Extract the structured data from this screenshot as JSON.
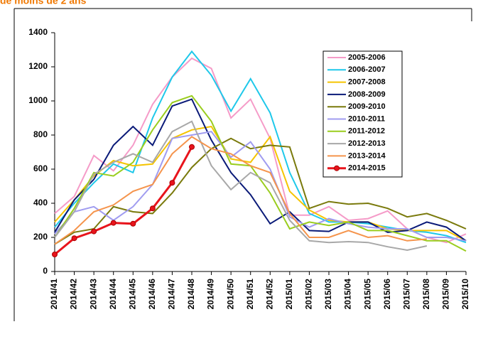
{
  "chart_data": {
    "type": "line",
    "title": "de moins de 2 ans",
    "categories": [
      "2014/41",
      "2014/42",
      "2014/43",
      "2014/44",
      "2014/45",
      "2014/46",
      "2014/47",
      "2014/48",
      "2014/49",
      "2014/50",
      "2014/51",
      "2014/52",
      "2015/01",
      "2015/02",
      "2015/03",
      "2015/04",
      "2015/05",
      "2015/06",
      "2015/07",
      "2015/08",
      "2015/09",
      "2015/10"
    ],
    "ylim": [
      0,
      1400
    ],
    "yticks": [
      0,
      200,
      400,
      600,
      800,
      1000,
      1200,
      1400
    ],
    "grid": false,
    "legend": "upper-right",
    "series": [
      {
        "name": "2005-2006",
        "color": "#f59bc8",
        "values": [
          340,
          440,
          680,
          590,
          740,
          980,
          1140,
          1250,
          1190,
          900,
          1010,
          780,
          330,
          330,
          380,
          300,
          310,
          355,
          250,
          200,
          170,
          220
        ]
      },
      {
        "name": "2006-2007",
        "color": "#1ec8ea",
        "values": [
          260,
          400,
          520,
          630,
          580,
          900,
          1140,
          1290,
          1150,
          940,
          1130,
          930,
          580,
          340,
          290,
          290,
          280,
          260,
          240,
          230,
          210,
          170
        ]
      },
      {
        "name": "2007-2008",
        "color": "#f5c400",
        "values": [
          290,
          420,
          560,
          650,
          620,
          630,
          780,
          830,
          850,
          660,
          640,
          790,
          470,
          360,
          300,
          290,
          290,
          250,
          240,
          240,
          240,
          180
        ]
      },
      {
        "name": "2008-2009",
        "color": "#0a1a78",
        "values": [
          230,
          420,
          540,
          740,
          850,
          740,
          970,
          1010,
          770,
          580,
          450,
          280,
          350,
          240,
          235,
          290,
          290,
          230,
          240,
          290,
          260,
          180
        ]
      },
      {
        "name": "2009-2010",
        "color": "#7a7a0c",
        "values": [
          160,
          230,
          250,
          380,
          350,
          340,
          460,
          610,
          720,
          780,
          720,
          740,
          730,
          370,
          410,
          395,
          400,
          370,
          320,
          340,
          300,
          250
        ]
      },
      {
        "name": "2010-2011",
        "color": "#a09cf0",
        "values": [
          220,
          350,
          380,
          300,
          380,
          510,
          780,
          800,
          820,
          670,
          760,
          600,
          320,
          260,
          310,
          280,
          260,
          250,
          250,
          200,
          200,
          180
        ]
      },
      {
        "name": "2011-2012",
        "color": "#9acd1e",
        "values": [
          200,
          370,
          580,
          560,
          640,
          830,
          990,
          1030,
          880,
          630,
          620,
          460,
          250,
          290,
          270,
          290,
          240,
          240,
          210,
          180,
          180,
          120
        ]
      },
      {
        "name": "2012-2013",
        "color": "#a8a8a8",
        "values": [
          200,
          350,
          570,
          640,
          690,
          640,
          820,
          880,
          620,
          480,
          580,
          520,
          300,
          180,
          170,
          175,
          170,
          145,
          125,
          150,
          null,
          null
        ]
      },
      {
        "name": "2013-2014",
        "color": "#f5944c",
        "values": [
          160,
          240,
          350,
          390,
          470,
          510,
          690,
          790,
          720,
          690,
          620,
          580,
          340,
          200,
          200,
          240,
          200,
          210,
          180,
          190,
          null,
          null
        ]
      },
      {
        "name": "2014-2015",
        "color": "#e8141c",
        "values": [
          100,
          195,
          235,
          285,
          280,
          370,
          520,
          730,
          null,
          null,
          null,
          null,
          null,
          null,
          null,
          null,
          null,
          null,
          null,
          null,
          null,
          null
        ]
      }
    ]
  }
}
